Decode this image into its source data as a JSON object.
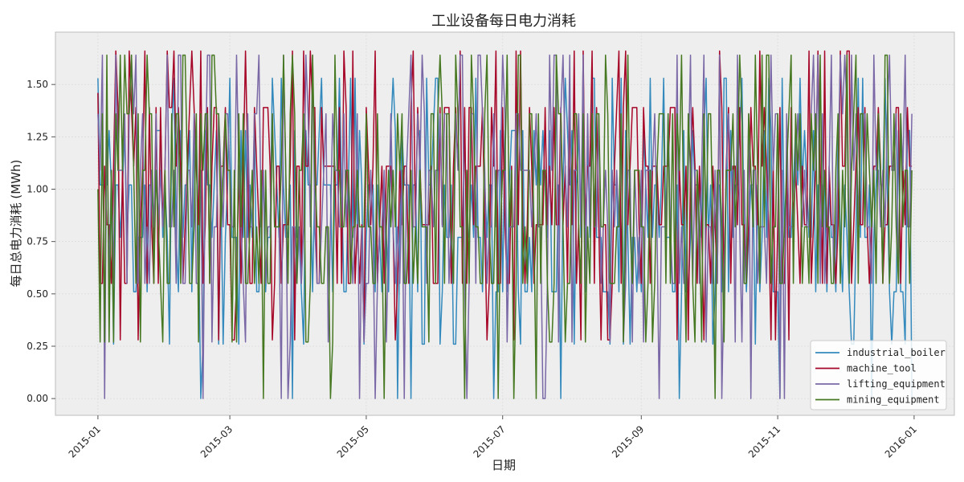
{
  "chart_data": {
    "type": "line",
    "title": "工业设备每日电力消耗",
    "xlabel": "日期",
    "ylabel": "每日总电力消耗 (MWh)",
    "x_start": "2015-01-01",
    "x_end": "2015-12-31",
    "xlim": [
      "2014-12-13",
      "2016-01-19"
    ],
    "ylim": [
      -0.08,
      1.75
    ],
    "x_ticks": [
      {
        "date": "2015-01-01",
        "label": "2015-01"
      },
      {
        "date": "2015-03-01",
        "label": "2015-03"
      },
      {
        "date": "2015-05-01",
        "label": "2015-05"
      },
      {
        "date": "2015-07-01",
        "label": "2015-07"
      },
      {
        "date": "2015-09-01",
        "label": "2015-09"
      },
      {
        "date": "2015-11-01",
        "label": "2015-11"
      },
      {
        "date": "2016-01-01",
        "label": "2016-01"
      }
    ],
    "y_ticks": [
      0.0,
      0.25,
      0.5,
      0.75,
      1.0,
      1.25,
      1.5
    ],
    "y_tick_labels": [
      "0.00",
      "0.25",
      "0.50",
      "0.75",
      "1.00",
      "1.25",
      "1.50"
    ],
    "grid": true,
    "legend_position": "bottom-right",
    "series": [
      {
        "name": "industrial_boiler",
        "color": "#348ABD",
        "levels": [
          0.0,
          0.26,
          0.51,
          0.77,
          1.02,
          1.28,
          1.53
        ],
        "start": 1.53,
        "seed": 11
      },
      {
        "name": "machine_tool",
        "color": "#A60628",
        "levels": [
          0.28,
          0.55,
          0.83,
          1.11,
          1.39,
          1.66
        ],
        "start": 1.46,
        "seed": 23
      },
      {
        "name": "lifting_equipment",
        "color": "#7A68A6",
        "levels": [
          0.0,
          0.27,
          0.55,
          0.82,
          1.09,
          1.36,
          1.64
        ],
        "start": 1.36,
        "seed": 37
      },
      {
        "name": "mining_equipment",
        "color": "#467821",
        "levels": [
          0.0,
          0.27,
          0.55,
          0.82,
          1.09,
          1.36,
          1.64
        ],
        "start": 1.0,
        "seed": 53
      }
    ]
  }
}
